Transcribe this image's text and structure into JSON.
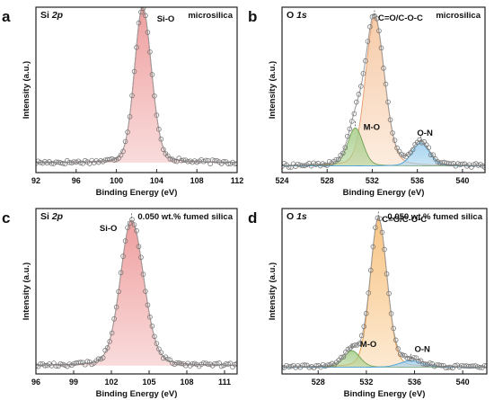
{
  "chart_data": [
    {
      "type": "line",
      "panel": "a",
      "title": "Si 2p",
      "sample": "microsilica",
      "xlabel": "Binding Energy (eV)",
      "ylabel": "Intensity (a.u.)",
      "xlim": [
        92,
        112
      ],
      "ylim": [
        0,
        1
      ],
      "xticks": [
        92,
        96,
        100,
        104,
        108,
        112
      ],
      "colors": {
        "frame": "#222222",
        "data_points": "#777777",
        "envelope": "#9a9a9a"
      },
      "peaks": [
        {
          "label": "Si-O",
          "center": 102.6,
          "height": 0.94,
          "width_left": 0.95,
          "width_right": 1.05,
          "color": "#ee9a9a",
          "line_color": "#d75a5a"
        }
      ],
      "baseline": 0.06,
      "noise": 0.012,
      "points": 90,
      "point_marker_x": 102.6
    },
    {
      "type": "line",
      "panel": "b",
      "title": "O 1s",
      "sample": "microsilica",
      "xlabel": "Binding Energy (eV)",
      "ylabel": "Intensity (a.u.)",
      "xlim": [
        524,
        542
      ],
      "ylim": [
        0,
        1
      ],
      "xticks": [
        524,
        528,
        532,
        536,
        540
      ],
      "colors": {
        "frame": "#222222",
        "data_points": "#777777",
        "envelope": "#9a9a9a"
      },
      "peaks": [
        {
          "label": "C=O/C-O-C",
          "center": 532.2,
          "height": 0.9,
          "width_left": 0.95,
          "width_right": 1.05,
          "color": "#f6c9a4",
          "line_color": "#e49a6a"
        },
        {
          "label": "M-O",
          "center": 530.5,
          "height": 0.23,
          "width_left": 0.8,
          "width_right": 0.8,
          "color": "#a9cf8e",
          "line_color": "#6fa152"
        },
        {
          "label": "O-N",
          "center": 536.3,
          "height": 0.14,
          "width_left": 0.9,
          "width_right": 0.9,
          "color": "#9fd0ef",
          "line_color": "#4aa3d8"
        }
      ],
      "baseline": 0.04,
      "noise": 0.012,
      "points": 90,
      "peak_label_positions": {
        "C=O/C-O-C": "top-right",
        "M-O": "right",
        "O-N": "above"
      }
    },
    {
      "type": "line",
      "panel": "c",
      "title": "Si 2p",
      "sample": "0.050 wt.% fumed silica",
      "xlabel": "Binding Energy (eV)",
      "ylabel": "Intensity (a.u.)",
      "xlim": [
        96,
        112
      ],
      "ylim": [
        0,
        1
      ],
      "xticks": [
        96,
        99,
        102,
        105,
        108,
        111
      ],
      "colors": {
        "frame": "#222222",
        "data_points": "#777777",
        "envelope": "#9a9a9a"
      },
      "peaks": [
        {
          "label": "Si-O",
          "center": 103.6,
          "height": 0.88,
          "width_left": 1.05,
          "width_right": 1.15,
          "color": "#ee9a9a",
          "line_color": "#d75a5a"
        }
      ],
      "baseline": 0.05,
      "noise": 0.012,
      "points": 90
    },
    {
      "type": "line",
      "panel": "d",
      "title": "O 1s",
      "sample": "0.050 wt.% fumed silica",
      "xlabel": "Binding Energy (eV)",
      "ylabel": "Intensity (a.u.)",
      "xlim": [
        525,
        542
      ],
      "ylim": [
        0,
        1
      ],
      "xticks": [
        528,
        532,
        536,
        540
      ],
      "colors": {
        "frame": "#222222",
        "data_points": "#777777",
        "envelope": "#9a9a9a"
      },
      "peaks": [
        {
          "label": "C=O/C-O-C",
          "center": 533.0,
          "height": 0.9,
          "width_left": 0.8,
          "width_right": 0.85,
          "color": "#f8c27f",
          "line_color": "#e8953f"
        },
        {
          "label": "M-O",
          "center": 530.8,
          "height": 0.1,
          "width_left": 0.8,
          "width_right": 0.8,
          "color": "#a9cf8e",
          "line_color": "#6fa152"
        },
        {
          "label": "O-N",
          "center": 535.7,
          "height": 0.04,
          "width_left": 1.1,
          "width_right": 1.1,
          "color": "#9fd0ef",
          "line_color": "#4aa3d8"
        }
      ],
      "baseline": 0.04,
      "noise": 0.01,
      "points": 90
    }
  ]
}
